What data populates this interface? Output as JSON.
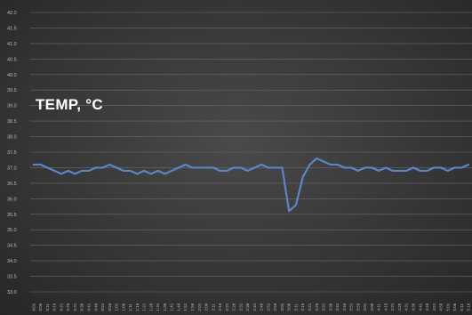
{
  "chart_data": {
    "type": "line",
    "title": "TEMP, °C",
    "xlabel": "",
    "ylabel": "",
    "ylim": [
      33.0,
      42.0
    ],
    "yticks": [
      "42.0",
      "41.5",
      "41.0",
      "40.5",
      "40.0",
      "39.5",
      "39.0",
      "38.5",
      "38.0",
      "37.5",
      "37.0",
      "36.5",
      "36.0",
      "35.5",
      "35.0",
      "34.5",
      "34.0",
      "33.5",
      "33.0"
    ],
    "x": [
      "0:01",
      "0:06",
      "0:11",
      "0:16",
      "0:21",
      "0:26",
      "0:31",
      "0:36",
      "0:41",
      "0:46",
      "0:51",
      "0:56",
      "1:01",
      "1:06",
      "1:11",
      "1:16",
      "1:21",
      "1:26",
      "1:31",
      "1:36",
      "1:41",
      "1:46",
      "1:51",
      "1:56",
      "2:01",
      "2:06",
      "2:11",
      "2:16",
      "2:21",
      "2:26",
      "2:31",
      "2:36",
      "2:41",
      "2:46",
      "2:51",
      "2:56",
      "3:01",
      "3:06",
      "3:11",
      "3:16",
      "3:21",
      "3:26",
      "3:31",
      "3:36",
      "3:41",
      "3:46",
      "3:51",
      "3:56",
      "4:01",
      "4:06",
      "4:11",
      "4:16",
      "4:21",
      "4:26",
      "4:31",
      "4:36",
      "4:41",
      "4:46",
      "4:51",
      "4:56",
      "5:01",
      "5:06",
      "5:11",
      "5:16"
    ],
    "series": [
      {
        "values": [
          37.1,
          37.1,
          37.0,
          36.9,
          36.8,
          36.9,
          36.8,
          36.9,
          36.9,
          37.0,
          37.0,
          37.1,
          37.0,
          36.9,
          36.9,
          36.8,
          36.9,
          36.8,
          36.9,
          36.8,
          36.9,
          37.0,
          37.1,
          37.0,
          37.0,
          37.0,
          37.0,
          36.9,
          36.9,
          37.0,
          37.0,
          36.9,
          37.0,
          37.1,
          37.0,
          37.0,
          37.0,
          35.6,
          35.8,
          36.7,
          37.1,
          37.3,
          37.2,
          37.1,
          37.1,
          37.0,
          37.0,
          36.9,
          37.0,
          37.0,
          36.9,
          37.0,
          36.9,
          36.9,
          36.9,
          37.0,
          36.9,
          36.9,
          37.0,
          37.0,
          36.9,
          37.0,
          37.0,
          37.1
        ]
      }
    ],
    "colors": {
      "line": "#5b86c5",
      "background": "#3c3c3c",
      "tick_text": "#b8b8b8"
    },
    "grid": true
  }
}
